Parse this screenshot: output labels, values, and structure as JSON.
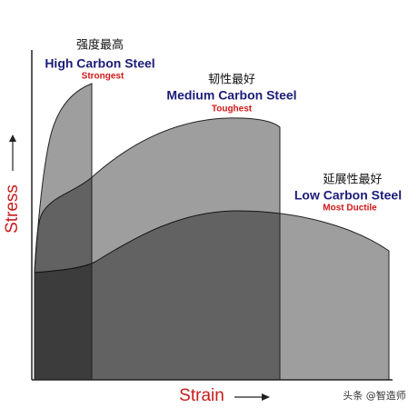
{
  "curves": [
    {
      "note": "强度最高",
      "name": "High Carbon Steel",
      "tag": "Strongest"
    },
    {
      "note": "韧性最好",
      "name": "Medium Carbon Steel",
      "tag": "Toughest"
    },
    {
      "note": "延展性最好",
      "name": "Low Carbon Steel",
      "tag": "Most Ductile"
    }
  ],
  "axes": {
    "y": "Stress",
    "x": "Strain"
  },
  "watermark": "头条 @智造师"
}
